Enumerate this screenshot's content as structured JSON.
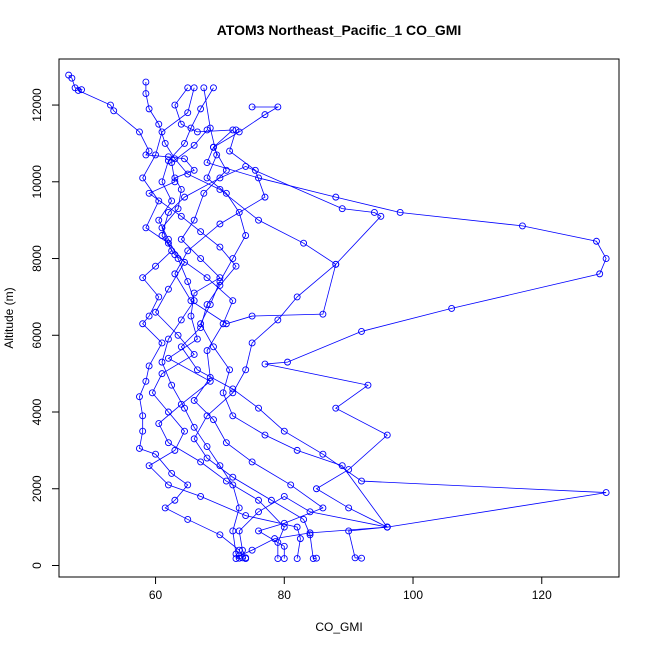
{
  "chart_data": {
    "type": "scatter",
    "title": "ATOM3 Northeast_Pacific_1 CO_GMI",
    "xlabel": "CO_GMI",
    "ylabel": "Altitude (m)",
    "xlim": [
      45,
      132
    ],
    "ylim": [
      -300,
      13200
    ],
    "x_ticks": [
      60,
      80,
      100,
      120
    ],
    "y_ticks": [
      0,
      2000,
      4000,
      6000,
      8000,
      10000,
      12000
    ],
    "grid": false,
    "legend": "none",
    "line_color": "#0000ff",
    "marker": "open-circle",
    "series": [
      {
        "points": [
          [
            46.5,
            12780
          ],
          [
            47.0,
            12700
          ],
          [
            47.5,
            12450
          ],
          [
            48.5,
            12400
          ],
          [
            48.0,
            12380
          ],
          [
            53.0,
            12000
          ],
          [
            53.5,
            11850
          ],
          [
            57.5,
            11300
          ],
          [
            59.0,
            10800
          ],
          [
            58.5,
            10700
          ],
          [
            62.0,
            10650
          ],
          [
            64.5,
            10600
          ],
          [
            66.0,
            10300
          ],
          [
            63.0,
            10100
          ],
          [
            64.0,
            9800
          ],
          [
            63.5,
            9300
          ],
          [
            61.0,
            8800
          ],
          [
            62.5,
            8200
          ],
          [
            60.0,
            7800
          ],
          [
            58.0,
            7500
          ],
          [
            60.5,
            7000
          ],
          [
            59.0,
            6500
          ],
          [
            58.0,
            6300
          ],
          [
            61.0,
            5800
          ],
          [
            59.0,
            5200
          ],
          [
            58.5,
            4800
          ],
          [
            57.5,
            4400
          ],
          [
            58.0,
            3900
          ],
          [
            58.0,
            3500
          ],
          [
            57.5,
            3050
          ],
          [
            60.0,
            2900
          ],
          [
            62.5,
            2400
          ],
          [
            65.0,
            2100
          ],
          [
            63.0,
            1700
          ],
          [
            61.5,
            1500
          ],
          [
            65.0,
            1200
          ],
          [
            70.0,
            800
          ],
          [
            73.0,
            400
          ],
          [
            73.5,
            200
          ],
          [
            74.0,
            180
          ]
        ]
      },
      {
        "points": [
          [
            58.5,
            12600
          ],
          [
            58.5,
            12300
          ],
          [
            59.0,
            11900
          ],
          [
            60.5,
            11500
          ],
          [
            61.5,
            11000
          ],
          [
            63.0,
            10600
          ],
          [
            65.0,
            10200
          ],
          [
            70.0,
            9800
          ],
          [
            76.0,
            9000
          ],
          [
            83.0,
            8400
          ],
          [
            88.0,
            7850
          ],
          [
            82.0,
            7000
          ],
          [
            79.0,
            6400
          ],
          [
            75.0,
            5800
          ],
          [
            74.0,
            5100
          ],
          [
            72.0,
            4500
          ],
          [
            68.0,
            3900
          ],
          [
            66.0,
            3300
          ],
          [
            68.0,
            2800
          ],
          [
            72.0,
            2300
          ],
          [
            78.0,
            1700
          ],
          [
            83.0,
            1200
          ],
          [
            84.0,
            800
          ],
          [
            84.5,
            180
          ],
          [
            85.0,
            190
          ]
        ]
      },
      {
        "points": [
          [
            65.0,
            12450
          ],
          [
            63.0,
            12000
          ],
          [
            64.0,
            11500
          ],
          [
            66.5,
            11300
          ],
          [
            72.0,
            11350
          ],
          [
            69.0,
            10900
          ],
          [
            68.0,
            10500
          ],
          [
            76.0,
            10100
          ],
          [
            88.0,
            9600
          ],
          [
            98.0,
            9200
          ],
          [
            117.0,
            8850
          ],
          [
            128.5,
            8450
          ],
          [
            130.0,
            8000
          ],
          [
            129.0,
            7600
          ],
          [
            106.0,
            6700
          ],
          [
            92.0,
            6100
          ],
          [
            80.5,
            5300
          ],
          [
            77.0,
            5250
          ],
          [
            93.0,
            4700
          ],
          [
            88.0,
            4100
          ],
          [
            96.0,
            3400
          ],
          [
            90.0,
            2500
          ],
          [
            85.0,
            2000
          ],
          [
            90.0,
            1500
          ],
          [
            96.0,
            1000
          ],
          [
            90.0,
            900
          ],
          [
            91.0,
            200
          ],
          [
            92.0,
            190
          ]
        ]
      },
      {
        "points": [
          [
            75.0,
            11950
          ],
          [
            79.0,
            11950
          ],
          [
            77.0,
            11750
          ],
          [
            73.0,
            11300
          ],
          [
            69.0,
            10900
          ],
          [
            71.0,
            10300
          ],
          [
            67.5,
            9700
          ],
          [
            66.0,
            9000
          ],
          [
            64.0,
            8500
          ],
          [
            67.0,
            8000
          ],
          [
            70.0,
            7500
          ],
          [
            66.0,
            7100
          ],
          [
            65.5,
            6500
          ],
          [
            66.5,
            5900
          ],
          [
            62.0,
            5400
          ],
          [
            68.5,
            4800
          ],
          [
            64.0,
            4200
          ],
          [
            60.5,
            3700
          ],
          [
            62.0,
            3200
          ],
          [
            67.0,
            2700
          ],
          [
            71.0,
            2200
          ],
          [
            76.0,
            1700
          ],
          [
            80.0,
            1000
          ],
          [
            79.0,
            600
          ],
          [
            79.0,
            180
          ]
        ]
      },
      {
        "points": [
          [
            68.0,
            11350
          ],
          [
            66.0,
            10950
          ],
          [
            62.5,
            10500
          ],
          [
            63.0,
            10000
          ],
          [
            59.0,
            9700
          ],
          [
            64.0,
            9100
          ],
          [
            67.0,
            8700
          ],
          [
            70.0,
            8300
          ],
          [
            72.5,
            7800
          ],
          [
            70.0,
            7300
          ],
          [
            68.0,
            6800
          ],
          [
            67.0,
            6200
          ],
          [
            64.0,
            5700
          ],
          [
            66.5,
            5100
          ],
          [
            72.0,
            4600
          ],
          [
            76.0,
            4100
          ],
          [
            80.0,
            3500
          ],
          [
            86.0,
            2900
          ],
          [
            92.0,
            2200
          ],
          [
            130.0,
            1900
          ],
          [
            96.0,
            1000
          ],
          [
            84.0,
            850
          ],
          [
            78.5,
            700
          ],
          [
            75.0,
            400
          ],
          [
            73.0,
            250
          ],
          [
            72.5,
            180
          ]
        ]
      },
      {
        "points": [
          [
            72.5,
            11350
          ],
          [
            71.5,
            10800
          ],
          [
            75.5,
            10300
          ],
          [
            77.0,
            9600
          ],
          [
            70.0,
            8900
          ],
          [
            65.0,
            8200
          ],
          [
            63.0,
            7600
          ],
          [
            65.5,
            6900
          ],
          [
            71.0,
            6300
          ],
          [
            75.0,
            6500
          ],
          [
            86.0,
            6550
          ],
          [
            88.0,
            7850
          ],
          [
            95.0,
            9100
          ],
          [
            94.0,
            9200
          ],
          [
            89.0,
            9300
          ],
          [
            74.0,
            10400
          ],
          [
            70.0,
            10100
          ],
          [
            64.5,
            9600
          ],
          [
            62.0,
            9200
          ],
          [
            61.0,
            8600
          ],
          [
            63.0,
            8100
          ],
          [
            68.0,
            7500
          ],
          [
            72.0,
            6900
          ],
          [
            70.5,
            6300
          ],
          [
            68.0,
            5600
          ],
          [
            68.5,
            4900
          ],
          [
            66.0,
            4300
          ],
          [
            69.0,
            3800
          ],
          [
            71.0,
            3200
          ],
          [
            75.0,
            2700
          ],
          [
            81.0,
            2100
          ],
          [
            86.0,
            1500
          ],
          [
            80.0,
            1100
          ],
          [
            76.0,
            900
          ],
          [
            80.0,
            500
          ],
          [
            80.0,
            180
          ]
        ]
      },
      {
        "points": [
          [
            66.0,
            12450
          ],
          [
            65.0,
            11800
          ],
          [
            61.0,
            11300
          ],
          [
            60.0,
            10700
          ],
          [
            58.0,
            10100
          ],
          [
            60.5,
            9500
          ],
          [
            58.5,
            8800
          ],
          [
            62.0,
            8400
          ],
          [
            64.5,
            7900
          ],
          [
            62.0,
            7200
          ],
          [
            60.0,
            6600
          ],
          [
            63.5,
            6000
          ],
          [
            66.0,
            5500
          ],
          [
            61.0,
            5000
          ],
          [
            59.5,
            4500
          ],
          [
            62.0,
            4000
          ],
          [
            64.5,
            3500
          ],
          [
            63.0,
            3000
          ],
          [
            59.0,
            2600
          ],
          [
            62.0,
            2100
          ],
          [
            67.0,
            1800
          ],
          [
            74.0,
            1300
          ],
          [
            82.0,
            1000
          ],
          [
            82.5,
            700
          ],
          [
            82.0,
            180
          ]
        ]
      },
      {
        "points": [
          [
            67.5,
            12450
          ],
          [
            68.5,
            11400
          ],
          [
            69.5,
            10700
          ],
          [
            68.0,
            10100
          ],
          [
            71.0,
            9700
          ],
          [
            73.0,
            9200
          ],
          [
            74.0,
            8600
          ],
          [
            72.0,
            8000
          ],
          [
            70.0,
            7400
          ],
          [
            68.5,
            6800
          ],
          [
            67.0,
            6300
          ],
          [
            69.0,
            5700
          ],
          [
            71.5,
            5100
          ],
          [
            70.5,
            4500
          ],
          [
            72.0,
            3900
          ],
          [
            77.0,
            3400
          ],
          [
            82.0,
            3000
          ],
          [
            89.0,
            2600
          ],
          [
            96.0,
            1000
          ],
          [
            84.0,
            1400
          ],
          [
            80.0,
            1800
          ],
          [
            76.0,
            1400
          ],
          [
            73.0,
            900
          ],
          [
            73.5,
            400
          ],
          [
            74.0,
            200
          ]
        ]
      },
      {
        "points": [
          [
            69.0,
            12450
          ],
          [
            67.0,
            11900
          ],
          [
            65.5,
            11400
          ],
          [
            64.5,
            11000
          ],
          [
            62.0,
            10550
          ],
          [
            61.0,
            10000
          ],
          [
            62.5,
            9500
          ],
          [
            60.5,
            9000
          ],
          [
            62.0,
            8500
          ],
          [
            63.5,
            8000
          ],
          [
            65.0,
            7400
          ],
          [
            66.0,
            6900
          ],
          [
            64.0,
            6400
          ],
          [
            62.0,
            5900
          ],
          [
            61.0,
            5300
          ],
          [
            62.5,
            4700
          ],
          [
            64.5,
            4100
          ],
          [
            66.0,
            3600
          ],
          [
            68.0,
            3100
          ],
          [
            70.0,
            2600
          ],
          [
            72.0,
            2100
          ],
          [
            73.0,
            1500
          ],
          [
            72.0,
            900
          ],
          [
            72.5,
            300
          ],
          [
            73.0,
            190
          ]
        ]
      }
    ]
  }
}
